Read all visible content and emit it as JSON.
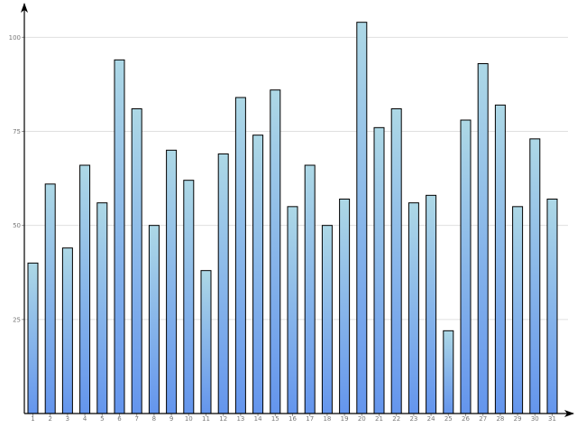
{
  "chart_data": {
    "type": "bar",
    "categories": [
      "1",
      "2",
      "3",
      "4",
      "5",
      "6",
      "7",
      "8",
      "9",
      "10",
      "11",
      "12",
      "13",
      "14",
      "15",
      "16",
      "17",
      "18",
      "19",
      "20",
      "21",
      "22",
      "23",
      "24",
      "25",
      "26",
      "27",
      "28",
      "29",
      "30",
      "31"
    ],
    "values": [
      40,
      61,
      44,
      66,
      56,
      94,
      81,
      50,
      70,
      62,
      38,
      69,
      84,
      74,
      86,
      55,
      66,
      50,
      57,
      104,
      76,
      81,
      56,
      58,
      22,
      78,
      93,
      82,
      55,
      73,
      57
    ],
    "y_ticks": [
      "25",
      "50",
      "75",
      "100"
    ],
    "ylim": [
      0,
      108
    ],
    "grid": true,
    "legend": "none",
    "colors": {
      "bar_top": "#add8e6",
      "bar_bottom": "#6495ed",
      "bar_stroke": "#000000",
      "grid": "#e0e0e0",
      "axis": "#000000"
    }
  }
}
